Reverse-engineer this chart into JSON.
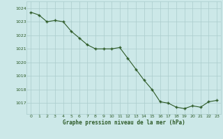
{
  "x": [
    0,
    1,
    2,
    3,
    4,
    5,
    6,
    7,
    8,
    9,
    10,
    11,
    12,
    13,
    14,
    15,
    16,
    17,
    18,
    19,
    20,
    21,
    22,
    23
  ],
  "y": [
    1023.7,
    1023.5,
    1023.0,
    1023.1,
    1023.0,
    1022.3,
    1021.8,
    1021.3,
    1021.0,
    1021.0,
    1021.0,
    1021.1,
    1020.3,
    1019.5,
    1018.7,
    1018.0,
    1017.1,
    1017.0,
    1016.7,
    1016.6,
    1016.8,
    1016.7,
    1017.1,
    1017.2
  ],
  "line_color": "#2d5a27",
  "marker_color": "#2d5a27",
  "bg_color": "#cce8e8",
  "grid_color": "#aacccc",
  "xlabel": "Graphe pression niveau de la mer (hPa)",
  "xlabel_color": "#2d5a27",
  "tick_color": "#2d5a27",
  "yticks": [
    1017,
    1018,
    1019,
    1020,
    1021,
    1022,
    1023,
    1024
  ],
  "xticks": [
    0,
    1,
    2,
    3,
    4,
    5,
    6,
    7,
    8,
    9,
    10,
    11,
    12,
    13,
    14,
    15,
    16,
    17,
    18,
    19,
    20,
    21,
    22,
    23
  ],
  "ylim": [
    1016.2,
    1024.5
  ],
  "xlim": [
    -0.5,
    23.5
  ],
  "figsize": [
    3.2,
    2.0
  ],
  "dpi": 100
}
